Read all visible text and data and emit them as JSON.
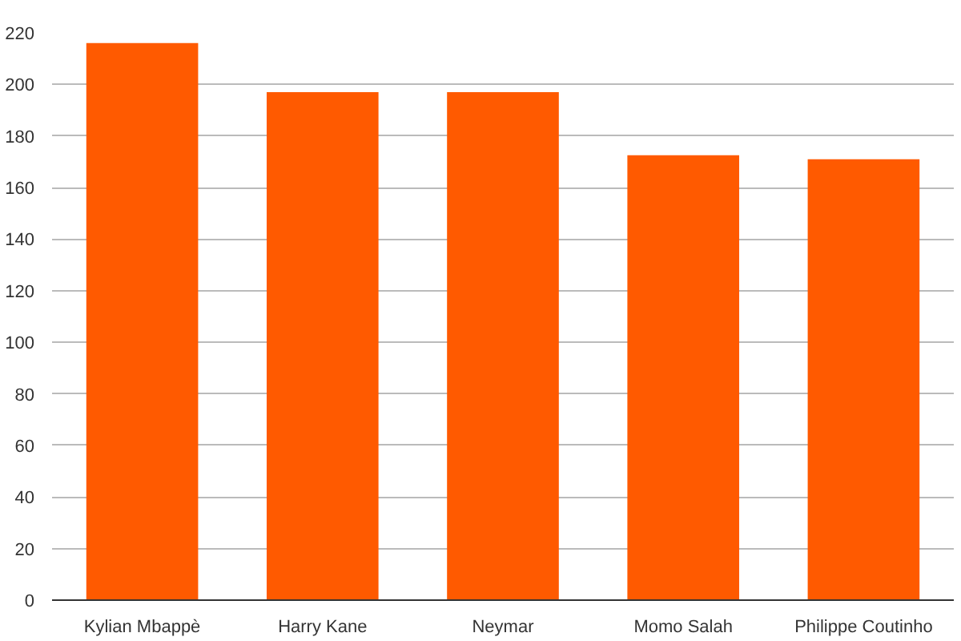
{
  "chart_data": {
    "type": "bar",
    "categories": [
      "Kylian Mbappè",
      "Harry Kane",
      "Neymar",
      "Momo Salah",
      "Philippe Coutinho"
    ],
    "values": [
      216,
      197,
      197,
      172.5,
      171
    ],
    "color": "#ff5a00",
    "ylim": [
      0,
      220
    ],
    "yticks": [
      0,
      20,
      40,
      60,
      80,
      100,
      120,
      140,
      160,
      180,
      200,
      220
    ],
    "grid": "y"
  }
}
